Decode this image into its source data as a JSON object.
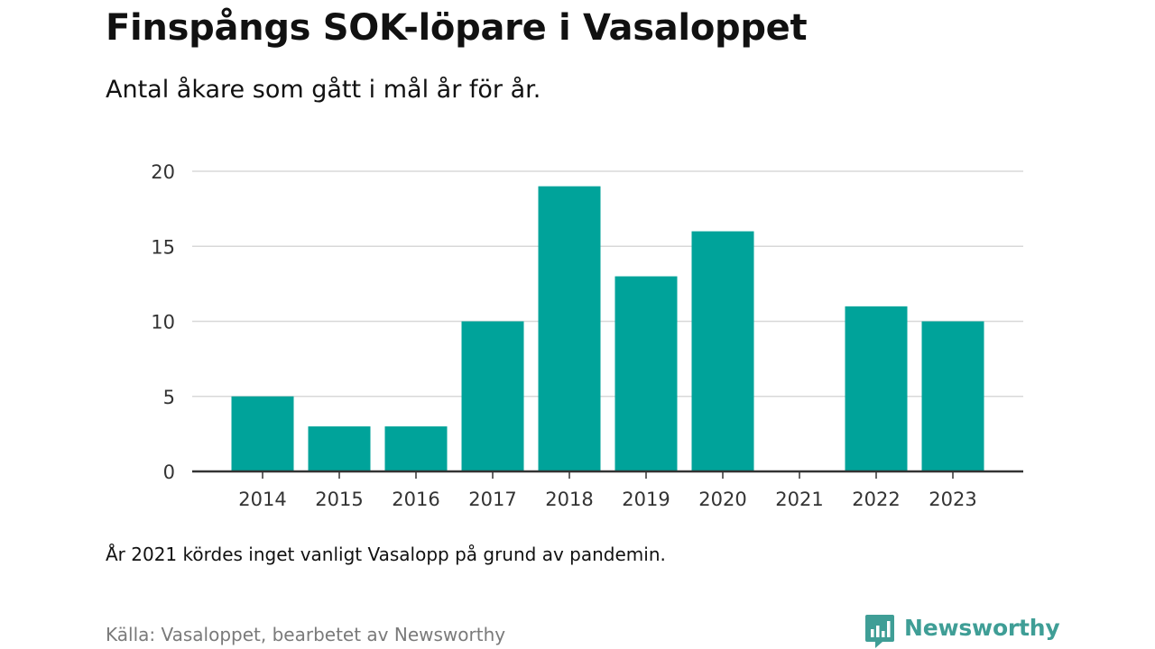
{
  "header": {
    "title": "Finspångs SOK-löpare i Vasaloppet",
    "subtitle": "Antal åkare som gått i mål år för år."
  },
  "footer": {
    "note": "År 2021 kördes inget vanligt Vasalopp på grund av pandemin.",
    "source": "Källa: Vasaloppet, bearbetet av Newsworthy",
    "brand": "Newsworthy"
  },
  "colors": {
    "bar": "#00a39a",
    "grid": "#d8d8d8",
    "axis": "#333333",
    "brand": "#3f9e96"
  },
  "chart_data": {
    "type": "bar",
    "title": "Finspångs SOK-löpare i Vasaloppet",
    "subtitle": "Antal åkare som gått i mål år för år.",
    "categories": [
      "2014",
      "2015",
      "2016",
      "2017",
      "2018",
      "2019",
      "2020",
      "2021",
      "2022",
      "2023"
    ],
    "values": [
      5,
      3,
      3,
      10,
      19,
      13,
      16,
      0,
      11,
      10
    ],
    "ylim": [
      0,
      20
    ],
    "yticks": [
      0,
      5,
      10,
      15,
      20
    ],
    "grid": true,
    "legend": "none"
  }
}
